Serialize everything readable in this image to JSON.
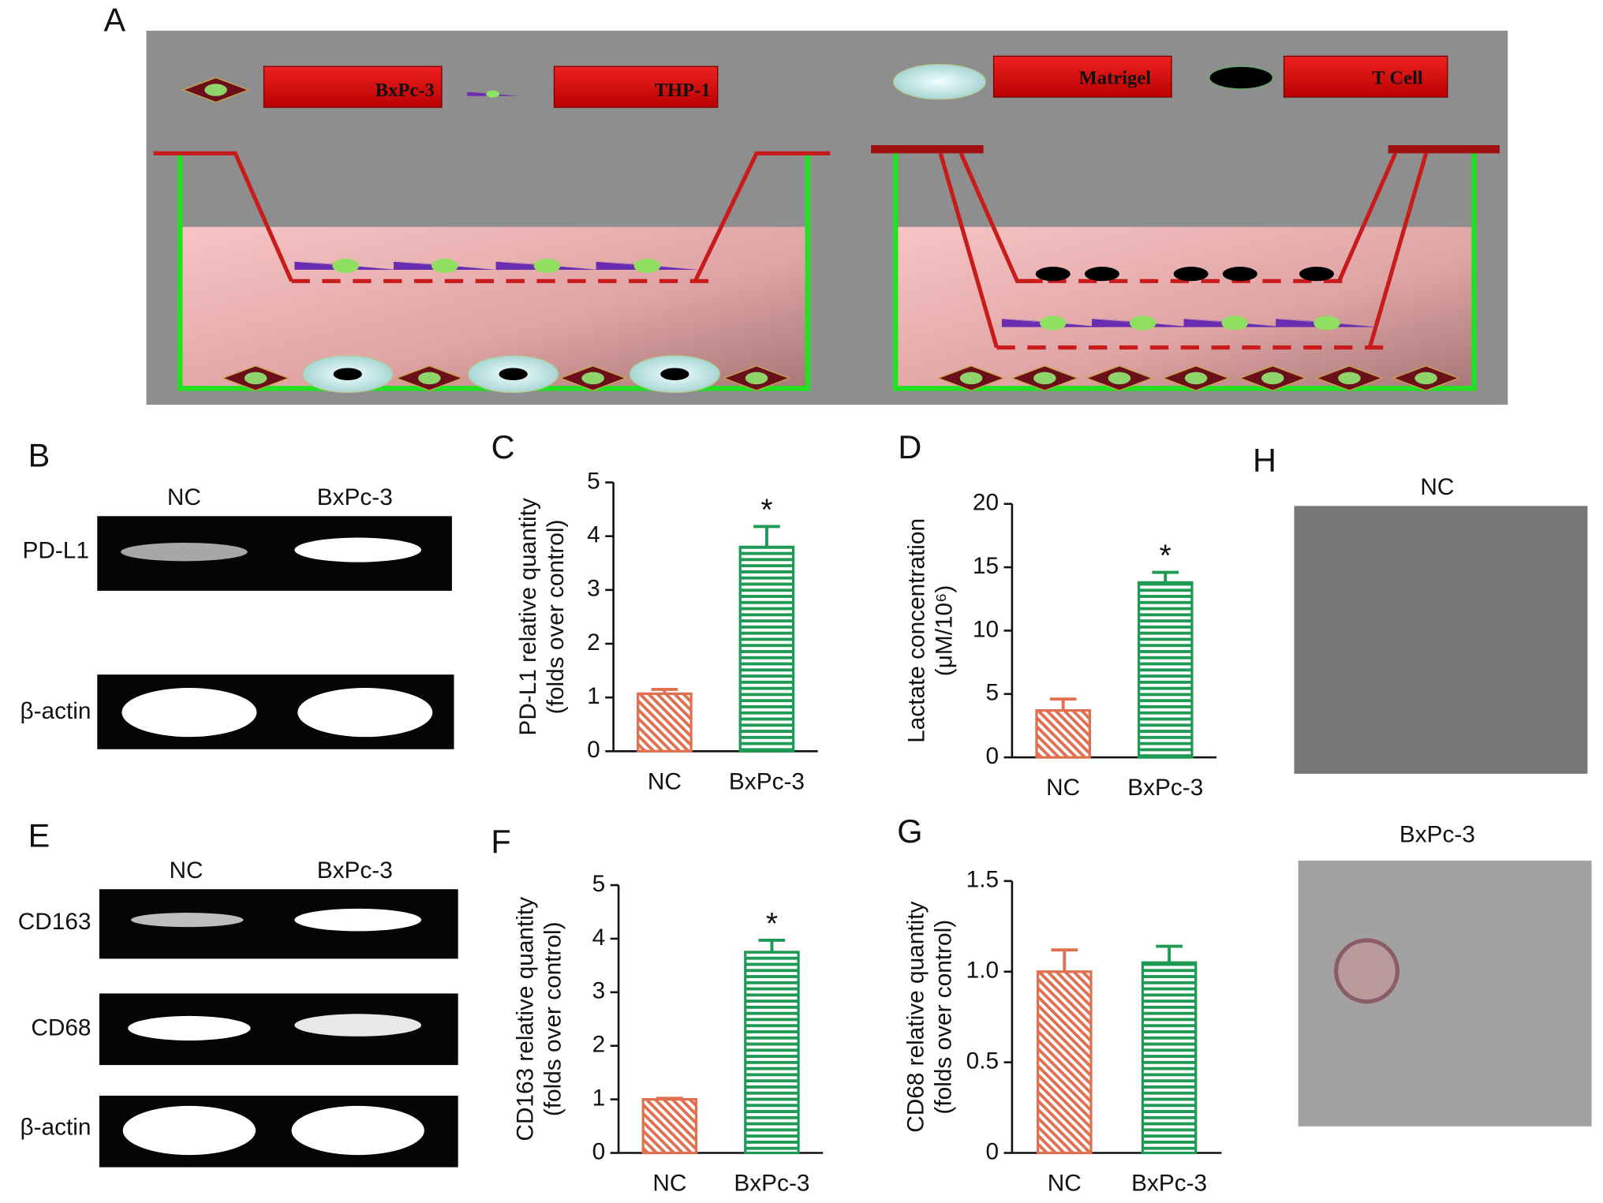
{
  "panel_labels": [
    "A",
    "B",
    "C",
    "D",
    "E",
    "F",
    "G",
    "H"
  ],
  "diagram": {
    "labels": [
      "BxPc-3",
      "THP-1",
      "Matrigel",
      "T Cell"
    ]
  },
  "gel_b": {
    "columns": [
      "NC",
      "BxPc-3"
    ],
    "rows": [
      "PD-L1",
      "β-actin"
    ]
  },
  "gel_e": {
    "columns": [
      "NC",
      "BxPc-3"
    ],
    "rows": [
      "CD163",
      "CD68",
      "β-actin"
    ]
  },
  "images": {
    "titles": [
      "NC",
      "BxPc-3"
    ]
  },
  "chart_data": [
    {
      "type": "bar",
      "y_label": [
        "PD-L1 relative quantity",
        "(folds over control)"
      ],
      "categories": [
        "NC",
        "BxPc-3"
      ],
      "values": [
        1.07,
        3.8
      ],
      "errors": [
        0.08,
        0.38
      ],
      "colors": [
        "#e0704f",
        "#1e9a55"
      ],
      "hatches": [
        "diagonal",
        "horizontal"
      ],
      "marker": "*",
      "marked": [
        false,
        true
      ],
      "ylim": [
        0,
        5
      ],
      "yticks": [
        0,
        1,
        2,
        3,
        4,
        5
      ]
    },
    {
      "type": "bar",
      "y_label": [
        "Lactate concentration",
        "(μM/10⁶)"
      ],
      "categories": [
        "NC",
        "BxPc-3"
      ],
      "values": [
        3.7,
        13.8
      ],
      "errors": [
        0.9,
        0.8
      ],
      "colors": [
        "#e0704f",
        "#1e9a55"
      ],
      "hatches": [
        "diagonal",
        "horizontal"
      ],
      "marker": "*",
      "marked": [
        false,
        true
      ],
      "ylim": [
        0,
        20
      ],
      "yticks": [
        0,
        5,
        10,
        15,
        20
      ]
    },
    {
      "type": "bar",
      "y_label": [
        "CD163 relative quantity",
        "(folds over control)"
      ],
      "categories": [
        "NC",
        "BxPc-3"
      ],
      "values": [
        1.0,
        3.75
      ],
      "errors": [
        0.02,
        0.22
      ],
      "colors": [
        "#e0704f",
        "#1e9a55"
      ],
      "hatches": [
        "diagonal",
        "horizontal"
      ],
      "marker": "*",
      "marked": [
        false,
        true
      ],
      "ylim": [
        0,
        5
      ],
      "yticks": [
        0,
        1,
        2,
        3,
        4,
        5
      ]
    },
    {
      "type": "bar",
      "y_label": [
        "CD68 relative quantity",
        "(folds over control)"
      ],
      "categories": [
        "NC",
        "BxPc-3"
      ],
      "values": [
        1.0,
        1.05
      ],
      "errors": [
        0.12,
        0.09
      ],
      "colors": [
        "#e0704f",
        "#1e9a55"
      ],
      "hatches": [
        "diagonal",
        "horizontal"
      ],
      "ylim": [
        0,
        1.5
      ],
      "yticks": [
        0,
        0.5,
        {
          "value": 1,
          "label": "1.0"
        },
        1.5
      ]
    }
  ]
}
